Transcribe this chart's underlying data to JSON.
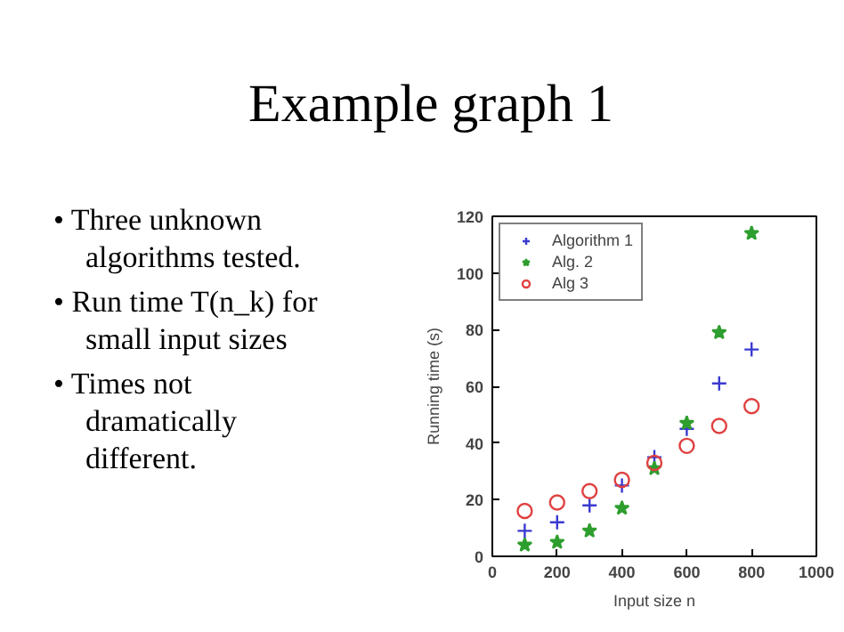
{
  "chart_data": {
    "type": "scatter",
    "title": "Example graph 1",
    "annotations": [
      "• Three unknown algorithms tested.",
      "• Run time T(n_k) for small input sizes",
      "• Times not dramatically different."
    ],
    "xlabel": "Input size n",
    "ylabel": "Running time (s)",
    "x": [
      100,
      200,
      300,
      400,
      500,
      600,
      700,
      800
    ],
    "series": [
      {
        "name": "Algorithm 1",
        "color": "#3a3ad0",
        "marker": "cross",
        "values": [
          9,
          12,
          18,
          25,
          35,
          45,
          61,
          73
        ]
      },
      {
        "name": "Alg. 2",
        "color": "#2e9e2e",
        "marker": "star",
        "values": [
          4,
          5,
          9,
          17,
          31,
          47,
          79,
          114
        ]
      },
      {
        "name": "Alg 3",
        "color": "#e04040",
        "marker": "circle",
        "values": [
          16,
          19,
          23,
          27,
          33,
          39,
          46,
          53
        ]
      }
    ],
    "xlim": [
      0,
      1000
    ],
    "xticks": [
      0,
      200,
      400,
      600,
      800,
      1000
    ],
    "ylim": [
      0,
      120
    ],
    "yticks": [
      0,
      20,
      40,
      60,
      80,
      100,
      120
    ],
    "grid": false,
    "legend": "top left"
  }
}
